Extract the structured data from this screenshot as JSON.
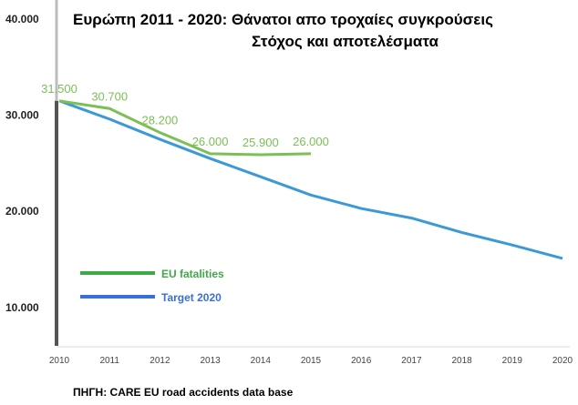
{
  "title_line1": "Ευρώπη 2011 - 2020: Θάνατοι απο τροχαίες συγκρούσεις",
  "title_line2": "Στόχος και αποτελέσματα",
  "source": "ΠΗΓΗ: CARE  EU road accidents data base",
  "chart_data": {
    "type": "line",
    "ylim": [
      6000,
      42000
    ],
    "y_ticks": [
      {
        "value": 10000,
        "label": "10.000"
      },
      {
        "value": 20000,
        "label": "20.000"
      },
      {
        "value": 30000,
        "label": "30.000"
      },
      {
        "value": 40000,
        "label": "40.000"
      }
    ],
    "x": [
      2010,
      2011,
      2012,
      2013,
      2014,
      2015,
      2016,
      2017,
      2018,
      2019,
      2020
    ],
    "legend": "bottom-left",
    "series": [
      {
        "name": "EU fatalities",
        "color": "#7bbf55",
        "legend_color": "#3fa847",
        "x": [
          2010,
          2011,
          2012,
          2013,
          2014,
          2015
        ],
        "values": [
          31500,
          30700,
          28200,
          26000,
          25900,
          26000
        ],
        "labels": [
          "31.500",
          "30.700",
          "28.200",
          "26.000",
          "25.900",
          "26.000"
        ]
      },
      {
        "name": "Target 2020",
        "color": "#3b9ad6",
        "legend_color": "#3a6fd8",
        "x": [
          2010,
          2011,
          2012,
          2013,
          2014,
          2015,
          2016,
          2017,
          2018,
          2019,
          2020
        ],
        "values": [
          31500,
          29600,
          27500,
          25500,
          23600,
          21700,
          20300,
          19300,
          17800,
          16500,
          15100
        ]
      }
    ]
  }
}
